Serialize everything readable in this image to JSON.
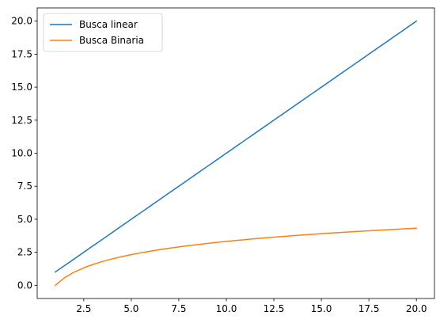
{
  "chart_data": {
    "type": "line",
    "title": "",
    "xlabel": "",
    "ylabel": "",
    "xlim": [
      0.05,
      20.95
    ],
    "ylim": [
      -1.0,
      21.0
    ],
    "grid": false,
    "legend_position": "top-left",
    "x_ticks": [
      2.5,
      5.0,
      7.5,
      10.0,
      12.5,
      15.0,
      17.5,
      20.0
    ],
    "x_tick_labels": [
      "2.5",
      "5.0",
      "7.5",
      "10.0",
      "12.5",
      "15.0",
      "17.5",
      "20.0"
    ],
    "y_ticks": [
      0.0,
      2.5,
      5.0,
      7.5,
      10.0,
      12.5,
      15.0,
      17.5,
      20.0
    ],
    "y_tick_labels": [
      "0.0",
      "2.5",
      "5.0",
      "7.5",
      "10.0",
      "12.5",
      "15.0",
      "17.5",
      "20.0"
    ],
    "x": [
      1,
      1.5,
      2,
      2.5,
      3,
      3.5,
      4,
      4.5,
      5,
      5.5,
      6,
      6.5,
      7,
      7.5,
      8,
      8.5,
      9,
      9.5,
      10,
      10.5,
      11,
      11.5,
      12,
      12.5,
      13,
      13.5,
      14,
      14.5,
      15,
      15.5,
      16,
      16.5,
      17,
      17.5,
      18,
      18.5,
      19,
      19.5,
      20
    ],
    "series": [
      {
        "name": "Busca linear",
        "color": "#1f77b4",
        "values": [
          1,
          1.5,
          2,
          2.5,
          3,
          3.5,
          4,
          4.5,
          5,
          5.5,
          6,
          6.5,
          7,
          7.5,
          8,
          8.5,
          9,
          9.5,
          10,
          10.5,
          11,
          11.5,
          12,
          12.5,
          13,
          13.5,
          14,
          14.5,
          15,
          15.5,
          16,
          16.5,
          17,
          17.5,
          18,
          18.5,
          19,
          19.5,
          20
        ]
      },
      {
        "name": "Busca Binaria",
        "color": "#ff7f0e",
        "values": [
          0.0,
          0.585,
          1.0,
          1.322,
          1.585,
          1.807,
          2.0,
          2.17,
          2.322,
          2.459,
          2.585,
          2.7,
          2.807,
          2.907,
          3.0,
          3.087,
          3.17,
          3.248,
          3.322,
          3.392,
          3.459,
          3.524,
          3.585,
          3.644,
          3.7,
          3.755,
          3.807,
          3.858,
          3.907,
          3.954,
          4.0,
          4.044,
          4.087,
          4.129,
          4.17,
          4.209,
          4.248,
          4.285,
          4.322
        ]
      }
    ]
  }
}
